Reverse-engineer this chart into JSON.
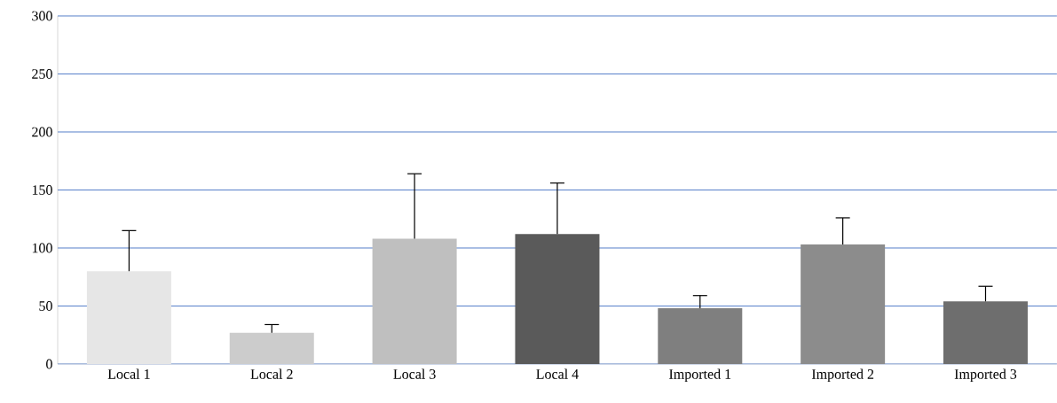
{
  "chart_data": {
    "type": "bar",
    "categories": [
      "Local 1",
      "Local 2",
      "Local 3",
      "Local 4",
      "Imported 1",
      "Imported 2",
      "Imported 3"
    ],
    "values": [
      80,
      27,
      108,
      112,
      48,
      103,
      54
    ],
    "errors": [
      [
        80,
        115
      ],
      [
        27,
        34
      ],
      [
        108,
        164
      ],
      [
        112,
        156
      ],
      [
        48,
        59
      ],
      [
        103,
        126
      ],
      [
        54,
        67
      ]
    ],
    "colors": [
      "#e6e6e6",
      "#cccccc",
      "#bfbfbf",
      "#5a5a5a",
      "#7f7f7f",
      "#8c8c8c",
      "#6e6e6e"
    ],
    "ylim": [
      0,
      300
    ],
    "yticks": [
      0,
      50,
      100,
      150,
      200,
      250,
      300
    ],
    "grid": "y"
  }
}
